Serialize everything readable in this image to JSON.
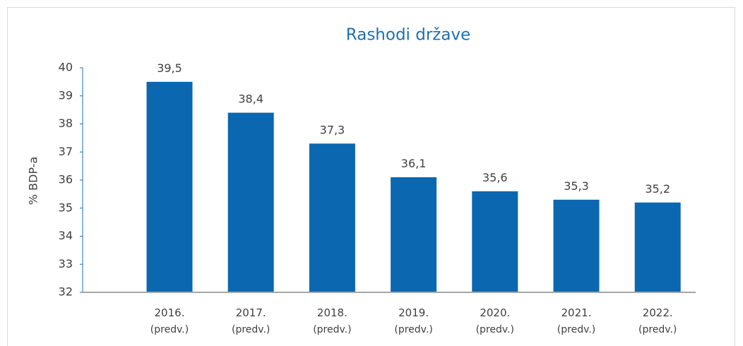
{
  "chart_data": {
    "type": "bar",
    "title": "Rashodi države",
    "y_label": "% BDP-a",
    "categories": [
      [
        "2016.",
        "(predv.)"
      ],
      [
        "2017.",
        "(predv.)"
      ],
      [
        "2018.",
        "(predv.)"
      ],
      [
        "2019.",
        "(predv.)"
      ],
      [
        "2020.",
        "(predv.)"
      ],
      [
        "2021.",
        "(predv.)"
      ],
      [
        "2022.",
        "(predv.)"
      ]
    ],
    "values": [
      39.5,
      38.4,
      37.3,
      36.1,
      35.6,
      35.3,
      35.2
    ],
    "value_labels": [
      "39,5",
      "38,4",
      "37,3",
      "36,1",
      "35,6",
      "35,3",
      "35,2"
    ],
    "color": "#0b67b0",
    "ylim": [
      32,
      40
    ],
    "yticks": [
      32,
      33,
      34,
      35,
      36,
      37,
      38,
      39,
      40
    ],
    "grid": false
  }
}
